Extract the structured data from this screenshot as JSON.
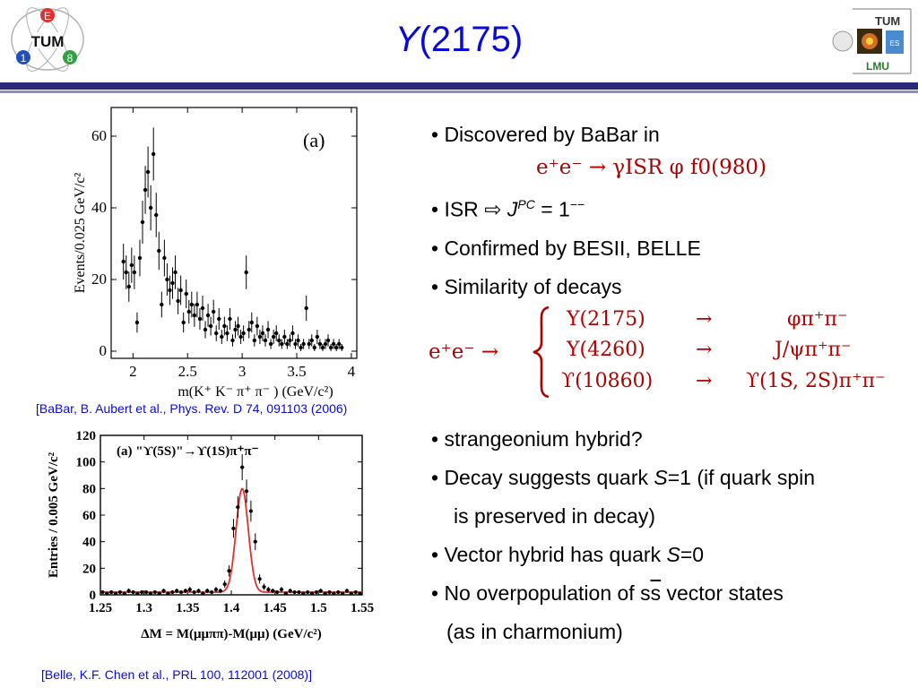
{
  "slide": {
    "title_main": "Y",
    "title_rest": "(2175)",
    "left_logo_text": "TUM",
    "left_logo_letters": [
      "E",
      "1",
      "8"
    ],
    "right_logo_top": "TUM",
    "right_logo_bottom": "LMU",
    "right_logo_side": "ES"
  },
  "bullets": {
    "b1": "• Discovered by BaBar in",
    "b1_formula": "e⁺e⁻ → γISR φ f0(980)",
    "b2_prefix": "• ISR ",
    "b2_arrow": "⇨",
    "b2_j": "J",
    "b2_pc": "PC",
    "b2_rest": " = 1",
    "b2_sup": "−−",
    "b3": "• Confirmed by BESII, BELLE",
    "b4": "• Similarity of decays",
    "decay_lhs": "e⁺e⁻ →",
    "decays": [
      {
        "state": "Y(2175)",
        "arrow": "→",
        "final": "φπ⁺π⁻"
      },
      {
        "state": "Y(4260)",
        "arrow": "→",
        "final": "J/ψπ⁺π⁻"
      },
      {
        "state": "ϒ(10860)",
        "arrow": "→",
        "final": "ϒ(1S, 2S)π⁺π⁻"
      }
    ],
    "b5": "• strangeonium hybrid?",
    "b6_a": "• Decay suggests quark ",
    "b6_s": "S",
    "b6_b": "=1 (if quark spin",
    "b7": "is preserved in decay)",
    "b8_a": "• Vector hybrid has quark ",
    "b8_s": "S",
    "b8_b": "=0",
    "b9_a": "• No overpopulation of s",
    "b9_over": "s",
    "b9_b": " vector states",
    "b10": "(as in charmonium)"
  },
  "citations": {
    "babar": "[BaBar, B. Aubert et al., Phys. Rev. D 74, 091103 (2006)",
    "belle": "[Belle, K.F. Chen et al., PRL 100, 112001 (2008)]"
  },
  "colors": {
    "title": "#0a0ad8",
    "formula": "#b00000",
    "fit_curve": "#e03030",
    "rule": "#2a2a78"
  },
  "chart_data": [
    {
      "type": "scatter",
      "panel_label": "(a)",
      "xlabel": "m(K⁺ K⁻ π⁺ π⁻ ) (GeV/c²)",
      "ylabel": "Events/0.025 GeV/c²",
      "xlim": [
        1.8,
        4.05
      ],
      "ylim": [
        -2,
        68
      ],
      "xticks": [
        2,
        2.5,
        3,
        3.5,
        4
      ],
      "xtick_labels": [
        "2",
        "2.5",
        "3",
        "3.5",
        "4"
      ],
      "yticks": [
        0,
        20,
        40,
        60
      ],
      "error_bars": true,
      "x": [
        1.9125,
        1.9375,
        1.9625,
        1.9875,
        2.0125,
        2.0375,
        2.0625,
        2.0875,
        2.1125,
        2.1375,
        2.1625,
        2.1875,
        2.2125,
        2.2375,
        2.2625,
        2.2875,
        2.3125,
        2.3375,
        2.3625,
        2.3875,
        2.4125,
        2.4375,
        2.4625,
        2.4875,
        2.5125,
        2.5375,
        2.5625,
        2.5875,
        2.6125,
        2.6375,
        2.6625,
        2.6875,
        2.7125,
        2.7375,
        2.7625,
        2.7875,
        2.8125,
        2.8375,
        2.8625,
        2.8875,
        2.9125,
        2.9375,
        2.9625,
        2.9875,
        3.0125,
        3.0375,
        3.0625,
        3.0875,
        3.1125,
        3.1375,
        3.1625,
        3.1875,
        3.2125,
        3.2375,
        3.2625,
        3.2875,
        3.3125,
        3.3375,
        3.3625,
        3.3875,
        3.4125,
        3.4375,
        3.4625,
        3.4875,
        3.5125,
        3.5375,
        3.5625,
        3.5875,
        3.6125,
        3.6375,
        3.6625,
        3.6875,
        3.7125,
        3.7375,
        3.7625,
        3.7875,
        3.8125,
        3.8375,
        3.8625,
        3.8875,
        3.9125
      ],
      "y": [
        25,
        22,
        18,
        24,
        22,
        8,
        26,
        36,
        45,
        50,
        40,
        55,
        38,
        28,
        13,
        26,
        20,
        17,
        19,
        22,
        14,
        17,
        8,
        16,
        11,
        13,
        10,
        13,
        9,
        12,
        6,
        10,
        7,
        11,
        5,
        9,
        4,
        7,
        5,
        9,
        3,
        6,
        7,
        4,
        5,
        22,
        6,
        8,
        3,
        7,
        4,
        5,
        3,
        6,
        2,
        4,
        5,
        3,
        2,
        4,
        2,
        3,
        5,
        2,
        3,
        1,
        2,
        12,
        2,
        3,
        1,
        4,
        2,
        1,
        2,
        3,
        1,
        2,
        1,
        2,
        1
      ],
      "yerr": [
        5,
        4.7,
        4.2,
        4.9,
        4.7,
        2.8,
        5.1,
        6,
        6.7,
        7.1,
        6.3,
        7.4,
        6.2,
        5.3,
        3.6,
        5.1,
        4.5,
        4.1,
        4.4,
        4.7,
        3.7,
        4.1,
        2.8,
        4,
        3.3,
        3.6,
        3.2,
        3.6,
        3,
        3.5,
        2.4,
        3.2,
        2.6,
        3.3,
        2.2,
        3,
        2,
        2.6,
        2.2,
        3,
        1.7,
        2.4,
        2.6,
        2,
        2.2,
        4.7,
        2.4,
        2.8,
        1.7,
        2.6,
        2,
        2.2,
        1.7,
        2.4,
        1.4,
        2,
        2.2,
        1.7,
        1.4,
        2,
        1.4,
        1.7,
        2.2,
        1.4,
        1.7,
        1,
        1.4,
        3.5,
        1.4,
        1.7,
        1,
        2,
        1.4,
        1,
        1.4,
        1.7,
        1,
        1.4,
        1,
        1.4,
        1
      ]
    },
    {
      "type": "scatter",
      "panel_label": "(a) \"ϒ(5S)\"→ϒ(1S)π⁺π⁻",
      "xlabel": "ΔM = M(μμππ)-M(μμ) (GeV/c²)",
      "ylabel": "Entries / 0.005 GeV/c²",
      "xlim": [
        1.25,
        1.55
      ],
      "ylim": [
        0,
        120
      ],
      "xticks": [
        1.25,
        1.3,
        1.35,
        1.4,
        1.45,
        1.5,
        1.55
      ],
      "xtick_labels": [
        "1.25",
        "1.3",
        "1.35",
        "1.4",
        "1.45",
        "1.5",
        "1.55"
      ],
      "yticks": [
        0,
        20,
        40,
        60,
        80,
        100,
        120
      ],
      "error_bars": true,
      "fit_curve": {
        "peak_x": 1.4125,
        "peak_y": 80,
        "sigma": 0.007,
        "baseline": 2
      },
      "x": [
        1.2525,
        1.2575,
        1.2625,
        1.2675,
        1.2725,
        1.2775,
        1.2825,
        1.2875,
        1.2925,
        1.2975,
        1.3025,
        1.3075,
        1.3125,
        1.3175,
        1.3225,
        1.3275,
        1.3325,
        1.3375,
        1.3425,
        1.3475,
        1.3525,
        1.3575,
        1.3625,
        1.3675,
        1.3725,
        1.3775,
        1.3825,
        1.3875,
        1.3925,
        1.3975,
        1.4025,
        1.4075,
        1.4125,
        1.4175,
        1.4225,
        1.4275,
        1.4325,
        1.4375,
        1.4425,
        1.4475,
        1.4525,
        1.4575,
        1.4625,
        1.4675,
        1.4725,
        1.4775,
        1.4825,
        1.4875,
        1.4925,
        1.4975,
        1.5025,
        1.5075,
        1.5125,
        1.5175,
        1.5225,
        1.5275,
        1.5325,
        1.5375,
        1.5425,
        1.5475
      ],
      "y": [
        2,
        1,
        2,
        1,
        2,
        1,
        3,
        2,
        1,
        2,
        2,
        1,
        2,
        1,
        3,
        1,
        2,
        3,
        2,
        3,
        4,
        2,
        3,
        1,
        3,
        2,
        4,
        3,
        8,
        18,
        50,
        66,
        96,
        78,
        63,
        40,
        12,
        6,
        4,
        3,
        2,
        4,
        1,
        3,
        2,
        2,
        1,
        2,
        1,
        2,
        3,
        1,
        2,
        1,
        2,
        1,
        3,
        1,
        2,
        1
      ],
      "yerr": [
        1.4,
        1,
        1.4,
        1,
        1.4,
        1,
        1.7,
        1.4,
        1,
        1.4,
        1.4,
        1,
        1.4,
        1,
        1.7,
        1,
        1.4,
        1.7,
        1.4,
        1.7,
        2,
        1.4,
        1.7,
        1,
        1.7,
        1.4,
        2,
        1.7,
        2.8,
        4.2,
        7.1,
        8.1,
        9.8,
        8.8,
        7.9,
        6.3,
        3.5,
        2.4,
        2,
        1.7,
        1.4,
        2,
        1,
        1.7,
        1.4,
        1.4,
        1,
        1.4,
        1,
        1.4,
        1.7,
        1,
        1.4,
        1,
        1.4,
        1,
        1.7,
        1,
        1.4,
        1
      ]
    }
  ]
}
